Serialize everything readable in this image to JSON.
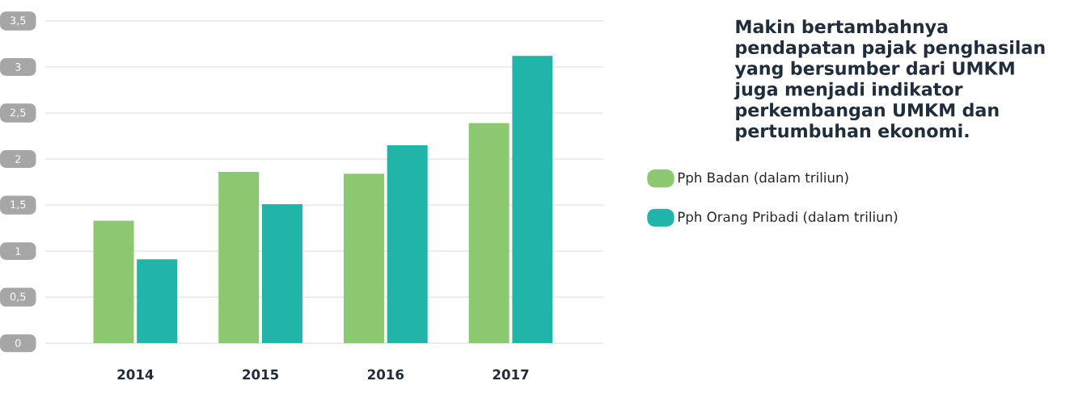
{
  "chart_data": {
    "type": "bar",
    "title": "Makin bertambahnya pendapatan pajak penghasilan yang bersumber dari UMKM juga menjadi indikator perkembangan UMKM dan pertumbuhan ekonomi.",
    "categories": [
      "2014",
      "2015",
      "2016",
      "2017"
    ],
    "series": [
      {
        "name": "Pph Badan (dalam triliun)",
        "color": "#8cc870",
        "values": [
          1.33,
          1.86,
          1.84,
          2.39
        ]
      },
      {
        "name": "Pph Orang Pribadi (dalam triliun)",
        "color": "#20b5a8",
        "values": [
          0.91,
          1.51,
          2.15,
          3.12
        ]
      }
    ],
    "ylim": [
      0,
      3.5
    ],
    "yticks": [
      0,
      {
        "value": 0.5,
        "label": "0,5"
      },
      1,
      {
        "value": 1.5,
        "label": "1,5"
      },
      2,
      {
        "value": 2.5,
        "label": "2,5"
      },
      3,
      {
        "value": 3.5,
        "label": "3,5"
      }
    ],
    "grid": "y",
    "legend": "right"
  }
}
